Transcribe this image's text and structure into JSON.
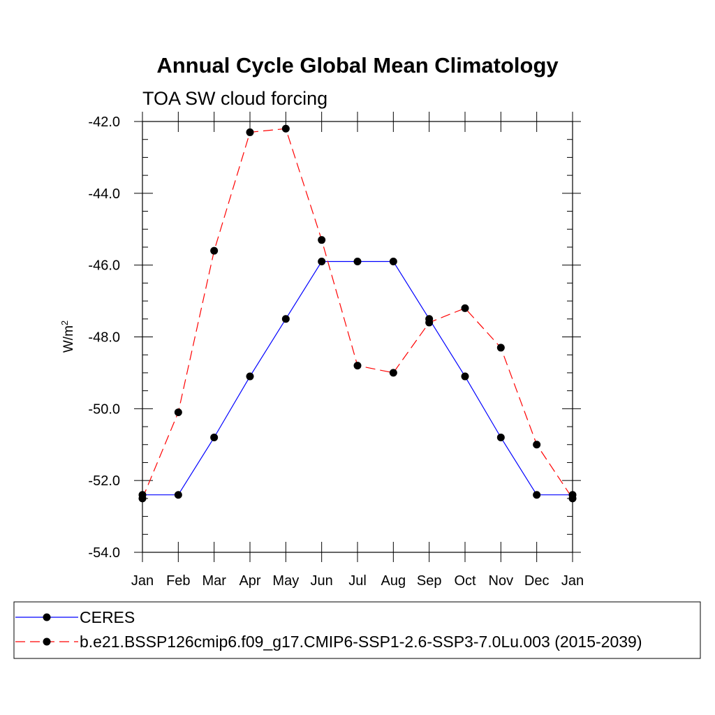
{
  "chart_data": {
    "type": "line",
    "title": "Annual Cycle Global Mean Climatology",
    "subtitle": "TOA SW cloud forcing",
    "ylabel": "W/m",
    "ylabel_sup": "2",
    "xlabel": "",
    "categories": [
      "Jan",
      "Feb",
      "Mar",
      "Apr",
      "May",
      "Jun",
      "Jul",
      "Aug",
      "Sep",
      "Oct",
      "Nov",
      "Dec",
      "Jan"
    ],
    "ylim": [
      -54.0,
      -42.0
    ],
    "yticks": [
      -42.0,
      -44.0,
      -46.0,
      -48.0,
      -50.0,
      -52.0,
      -54.0
    ],
    "ytick_labels": [
      "-42.0",
      "-44.0",
      "-46.0",
      "-48.0",
      "-50.0",
      "-52.0",
      "-54.0"
    ],
    "grid": false,
    "legend_position": "bottom",
    "series": [
      {
        "name": "CERES",
        "color": "#0000ff",
        "line_style": "solid",
        "values": [
          -52.4,
          -52.4,
          -50.8,
          -49.1,
          -47.5,
          -45.9,
          -45.9,
          -45.9,
          -47.5,
          -49.1,
          -50.8,
          -52.4,
          -52.4
        ]
      },
      {
        "name": "b.e21.BSSP126cmip6.f09_g17.CMIP6-SSP1-2.6-SSP3-7.0Lu.003 (2015-2039)",
        "color": "#ff0000",
        "line_style": "dashed",
        "values": [
          -52.5,
          -50.1,
          -45.6,
          -42.3,
          -42.2,
          -45.3,
          -48.8,
          -49.0,
          -47.6,
          -47.2,
          -48.3,
          -51.0,
          -52.5
        ]
      }
    ]
  }
}
